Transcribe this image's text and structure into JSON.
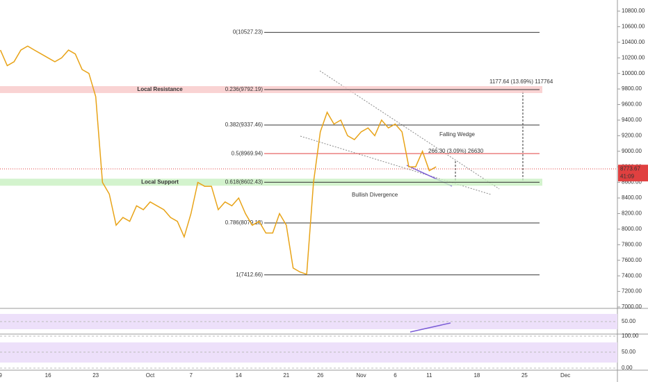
{
  "chart_data": {
    "type": "line",
    "categories": [
      "9",
      null,
      null,
      null,
      null,
      null,
      null,
      "16",
      null,
      null,
      null,
      null,
      null,
      null,
      "23",
      null,
      null,
      null,
      null,
      null,
      null,
      null,
      "Oct",
      null,
      null,
      null,
      null,
      null,
      "7",
      null,
      null,
      null,
      null,
      null,
      null,
      "14",
      null,
      null,
      null,
      null,
      null,
      null,
      "21",
      null,
      null,
      null,
      null,
      "26",
      null,
      null,
      null,
      null,
      null,
      "Nov",
      null,
      null,
      null,
      null,
      "6",
      null,
      null,
      null,
      null,
      "11",
      null,
      null,
      null,
      null,
      null,
      null,
      "18",
      null,
      null,
      null,
      null,
      null,
      null,
      "25",
      null,
      null,
      null,
      null,
      null,
      "Dec"
    ],
    "series": [
      {
        "color": "#e8a317",
        "values": [
          10300,
          10100,
          10150,
          10300,
          10350,
          10300,
          10250,
          10200,
          10150,
          10200,
          10300,
          10250,
          10050,
          10000,
          9700,
          8600,
          8450,
          8050,
          8150,
          8100,
          8300,
          8250,
          8350,
          8300,
          8250,
          8150,
          8100,
          7900,
          8200,
          8600,
          8550,
          8550,
          8250,
          8350,
          8300,
          8400,
          8200,
          8050,
          8100,
          7950,
          7950,
          8200,
          8050,
          7500,
          7450,
          7420,
          8600,
          9250,
          9500,
          9350,
          9400,
          9200,
          9150,
          9250,
          9300,
          9200,
          9400,
          9300,
          9350,
          9250,
          8800,
          8800,
          9000,
          8750,
          8800,
          null,
          null,
          null,
          null,
          null,
          null,
          null,
          null,
          null,
          null,
          null,
          null,
          null,
          null,
          null,
          null,
          null,
          null,
          null
        ]
      }
    ],
    "ylim": [
      7000,
      10800
    ],
    "yticks": [
      {
        "value": 7000,
        "label": "7000.00"
      },
      {
        "value": 7200,
        "label": "7200.00"
      },
      {
        "value": 7400,
        "label": "7400.00"
      },
      {
        "value": 7600,
        "label": "7600.00"
      },
      {
        "value": 7800,
        "label": "7800.00"
      },
      {
        "value": 8000,
        "label": "8000.00"
      },
      {
        "value": 8200,
        "label": "8200.00"
      },
      {
        "value": 8400,
        "label": "8400.00"
      },
      {
        "value": 8600,
        "label": "8600.00"
      },
      {
        "value": 8800,
        "label": "8800.00"
      },
      {
        "value": 9000,
        "label": "9000.00"
      },
      {
        "value": 9200,
        "label": "9200.00"
      },
      {
        "value": 9400,
        "label": "9400.00"
      },
      {
        "value": 9600,
        "label": "9600.00"
      },
      {
        "value": 9800,
        "label": "9800.00"
      },
      {
        "value": 10000,
        "label": "10000.00"
      },
      {
        "value": 10200,
        "label": "10200.00"
      },
      {
        "value": 10400,
        "label": "10400.00"
      },
      {
        "value": 10600,
        "label": "10600.00"
      },
      {
        "value": 10800,
        "label": "10800.00"
      }
    ],
    "levels": [
      {
        "label": "0(10527.23)",
        "value": 10527.23,
        "color": "#333333"
      },
      {
        "label": "0.236(9792.19)",
        "value": 9792.19,
        "color": "#333333"
      },
      {
        "label": "0.382(9337.46)",
        "value": 9337.46,
        "color": "#333333"
      },
      {
        "label": "0.5(8969.94)",
        "value": 8969.94,
        "color": "#e04040"
      },
      {
        "label": "0.618(8602.43)",
        "value": 8602.43,
        "color": "#333333"
      },
      {
        "label": "0.786(8079.18)",
        "value": 8079.18,
        "color": "#333333"
      },
      {
        "label": "1(7412.66)",
        "value": 7412.66,
        "color": "#333333"
      }
    ],
    "zones": [
      {
        "label": "Local Resistance",
        "value": 9792.19,
        "color": "#f8c8c8"
      },
      {
        "label": "Local Support",
        "value": 8602.43,
        "color": "#c8f0c0"
      }
    ],
    "notes": [
      "Falling Wedge",
      "Bullish Divergence"
    ],
    "measures": [
      "266.30 (3.09%) 26630",
      "1177.64 (13.69%) 117764"
    ],
    "current_price": {
      "value": 8773.67,
      "label": "8773.67"
    },
    "countdown": "41:09",
    "rsi_ticks": [
      {
        "value": 50,
        "label": "50.00"
      }
    ],
    "stoch_ticks": [
      {
        "value": 100,
        "label": "100.00"
      },
      {
        "value": 50,
        "label": "50.00"
      },
      {
        "value": 0,
        "label": "0.00"
      }
    ]
  }
}
